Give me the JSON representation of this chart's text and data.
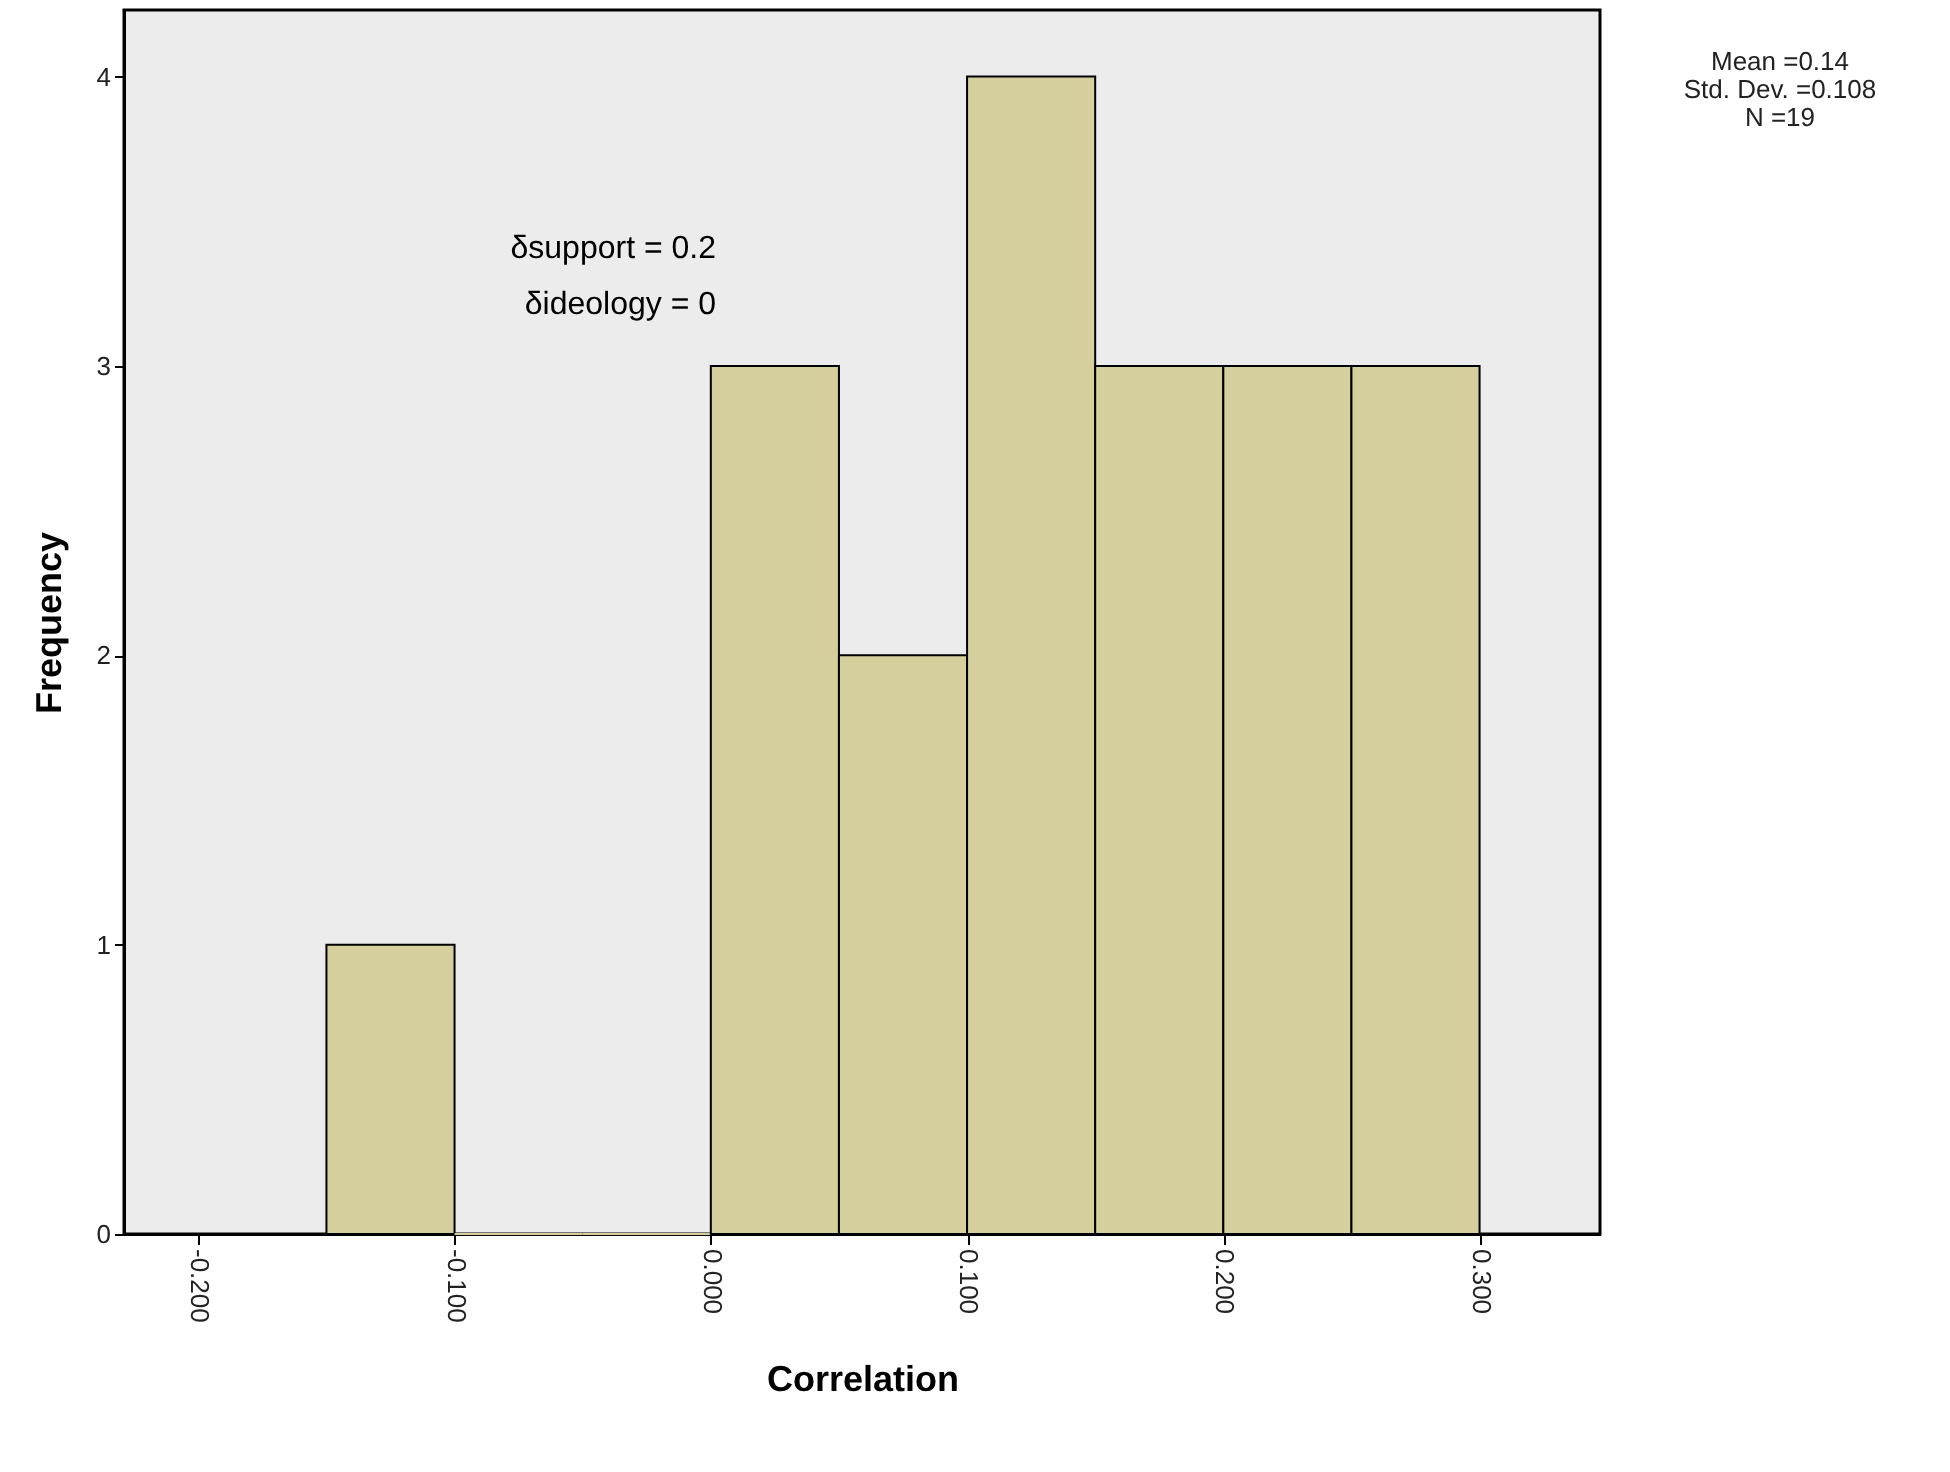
{
  "chart_data": {
    "type": "histogram",
    "xlabel": "Correlation",
    "ylabel": "Frequency",
    "bins": [
      -0.15,
      -0.1,
      -0.05,
      0,
      0.05,
      0.1,
      0.15,
      0.2,
      0.25,
      0.3
    ],
    "values": [
      1,
      0,
      0,
      3,
      2,
      4,
      3,
      3,
      3
    ],
    "color": "#d4cf9c",
    "xlim": [
      -0.229,
      0.347
    ],
    "xticks": [
      {
        "value": -0.2,
        "label": "-0.200"
      },
      {
        "value": -0.1,
        "label": "-0.100"
      },
      {
        "value": 0,
        "label": "0.000"
      },
      {
        "value": 0.1,
        "label": "0.100"
      },
      {
        "value": 0.2,
        "label": "0.200"
      },
      {
        "value": 0.3,
        "label": "0.300"
      }
    ],
    "ylim": [
      0,
      4.23
    ],
    "yticks": [
      0,
      1,
      2,
      3,
      4
    ],
    "grid": false,
    "annotations": [
      "δsupport = 0.2",
      "δideology = 0",
      "Mean =0.14",
      "Std. Dev. =0.108",
      "N =19"
    ]
  }
}
